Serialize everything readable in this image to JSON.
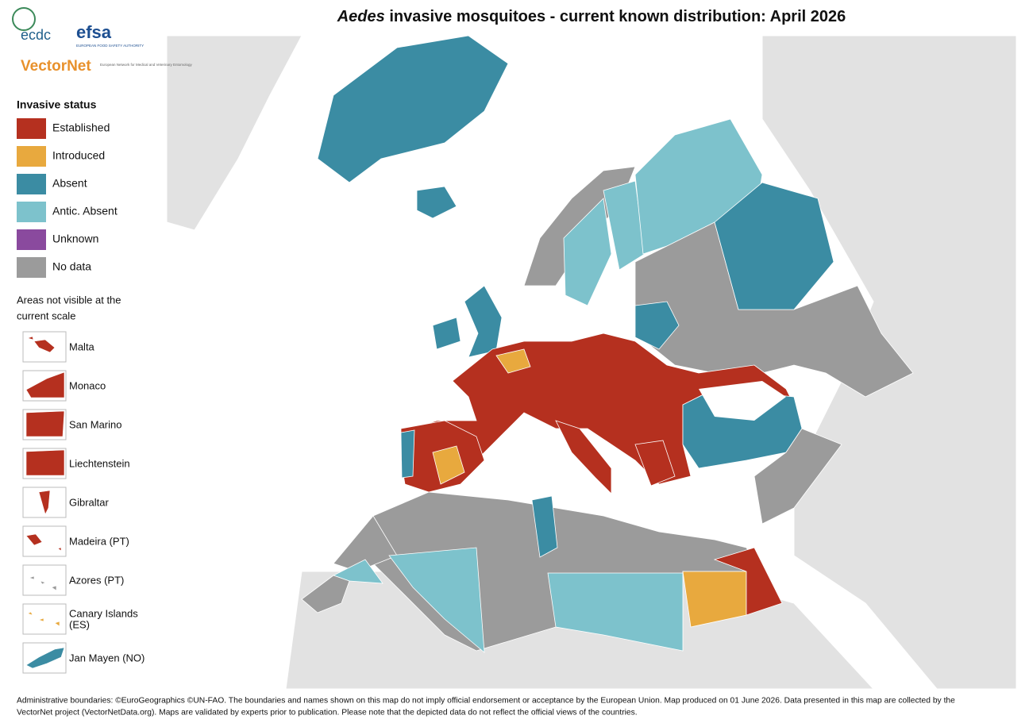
{
  "header": {
    "title_italic": "Aedes",
    "title": " invasive mosquitoes - current known distribution: April 2026"
  },
  "logos": {
    "ecdc": "ecdc",
    "efsa": "efsa",
    "efsa_subtitle": "EUROPEAN FOOD SAFETY AUTHORITY",
    "vectornet": "VectorNet",
    "vectornet_subtitle": "European Network for Medical and Veterinary Entomology"
  },
  "legend": {
    "title": "Invasive status",
    "items": [
      {
        "label": "Established",
        "color": "#b5301f"
      },
      {
        "label": "Introduced",
        "color": "#e8a93e"
      },
      {
        "label": "Absent",
        "color": "#3b8ca3"
      },
      {
        "label": "Antic. Absent",
        "color": "#7dc2cc"
      },
      {
        "label": "Unknown",
        "color": "#8a4a9e"
      },
      {
        "label": "No data",
        "color": "#9b9b9b"
      }
    ]
  },
  "insets": {
    "title_line1": "Areas not visible at the",
    "title_line2": "current scale",
    "items": [
      "Malta",
      "Monaco",
      "San Marino",
      "Liechtenstein",
      "Gibraltar",
      "Madeira (PT)",
      "Azores (PT)",
      "Canary Islands",
      "(ES)",
      "Jan Mayen (NO)"
    ]
  },
  "footer": {
    "line1": "Administrative boundaries: ©EuroGeographics ©UN-FAO. The boundaries and names shown on this map do not imply official endorsement or acceptance by the European Union. Map produced on 01 June 2026. Data presented in this map are collected by the",
    "line2": "VectorNet project (VectorNetData.org). Maps are validated by experts prior to publication. Please note that the depicted data do not reflect the official views of the countries."
  }
}
